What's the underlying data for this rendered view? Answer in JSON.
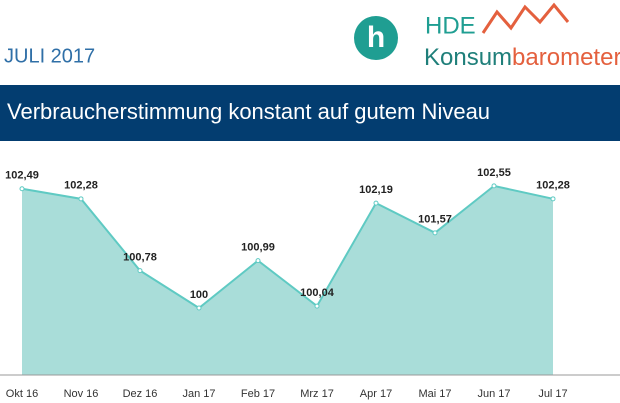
{
  "header": {
    "date": "JULI 2017",
    "logo_letter": "h",
    "logo_brand": "HDE",
    "logo_name_1": "Konsum",
    "logo_name_2": "barometer"
  },
  "chart_data": {
    "type": "area",
    "title": "Verbraucherstimmung konstant auf gutem Niveau",
    "categories": [
      "Okt 16",
      "Nov 16",
      "Dez 16",
      "Jan 17",
      "Feb 17",
      "Mrz 17",
      "Apr 17",
      "Mai 17",
      "Jun 17",
      "Jul 17"
    ],
    "values": [
      102.49,
      102.28,
      100.78,
      100,
      100.99,
      100.04,
      102.19,
      101.57,
      102.55,
      102.28
    ],
    "value_labels": [
      "102,49",
      "102,28",
      "100,78",
      "100",
      "100,99",
      "100,04",
      "102,19",
      "101,57",
      "102,55",
      "102,28"
    ],
    "color": "#a9ddd9",
    "line_color": "#5fcac3",
    "ylim": [
      98.6,
      103.3
    ]
  }
}
